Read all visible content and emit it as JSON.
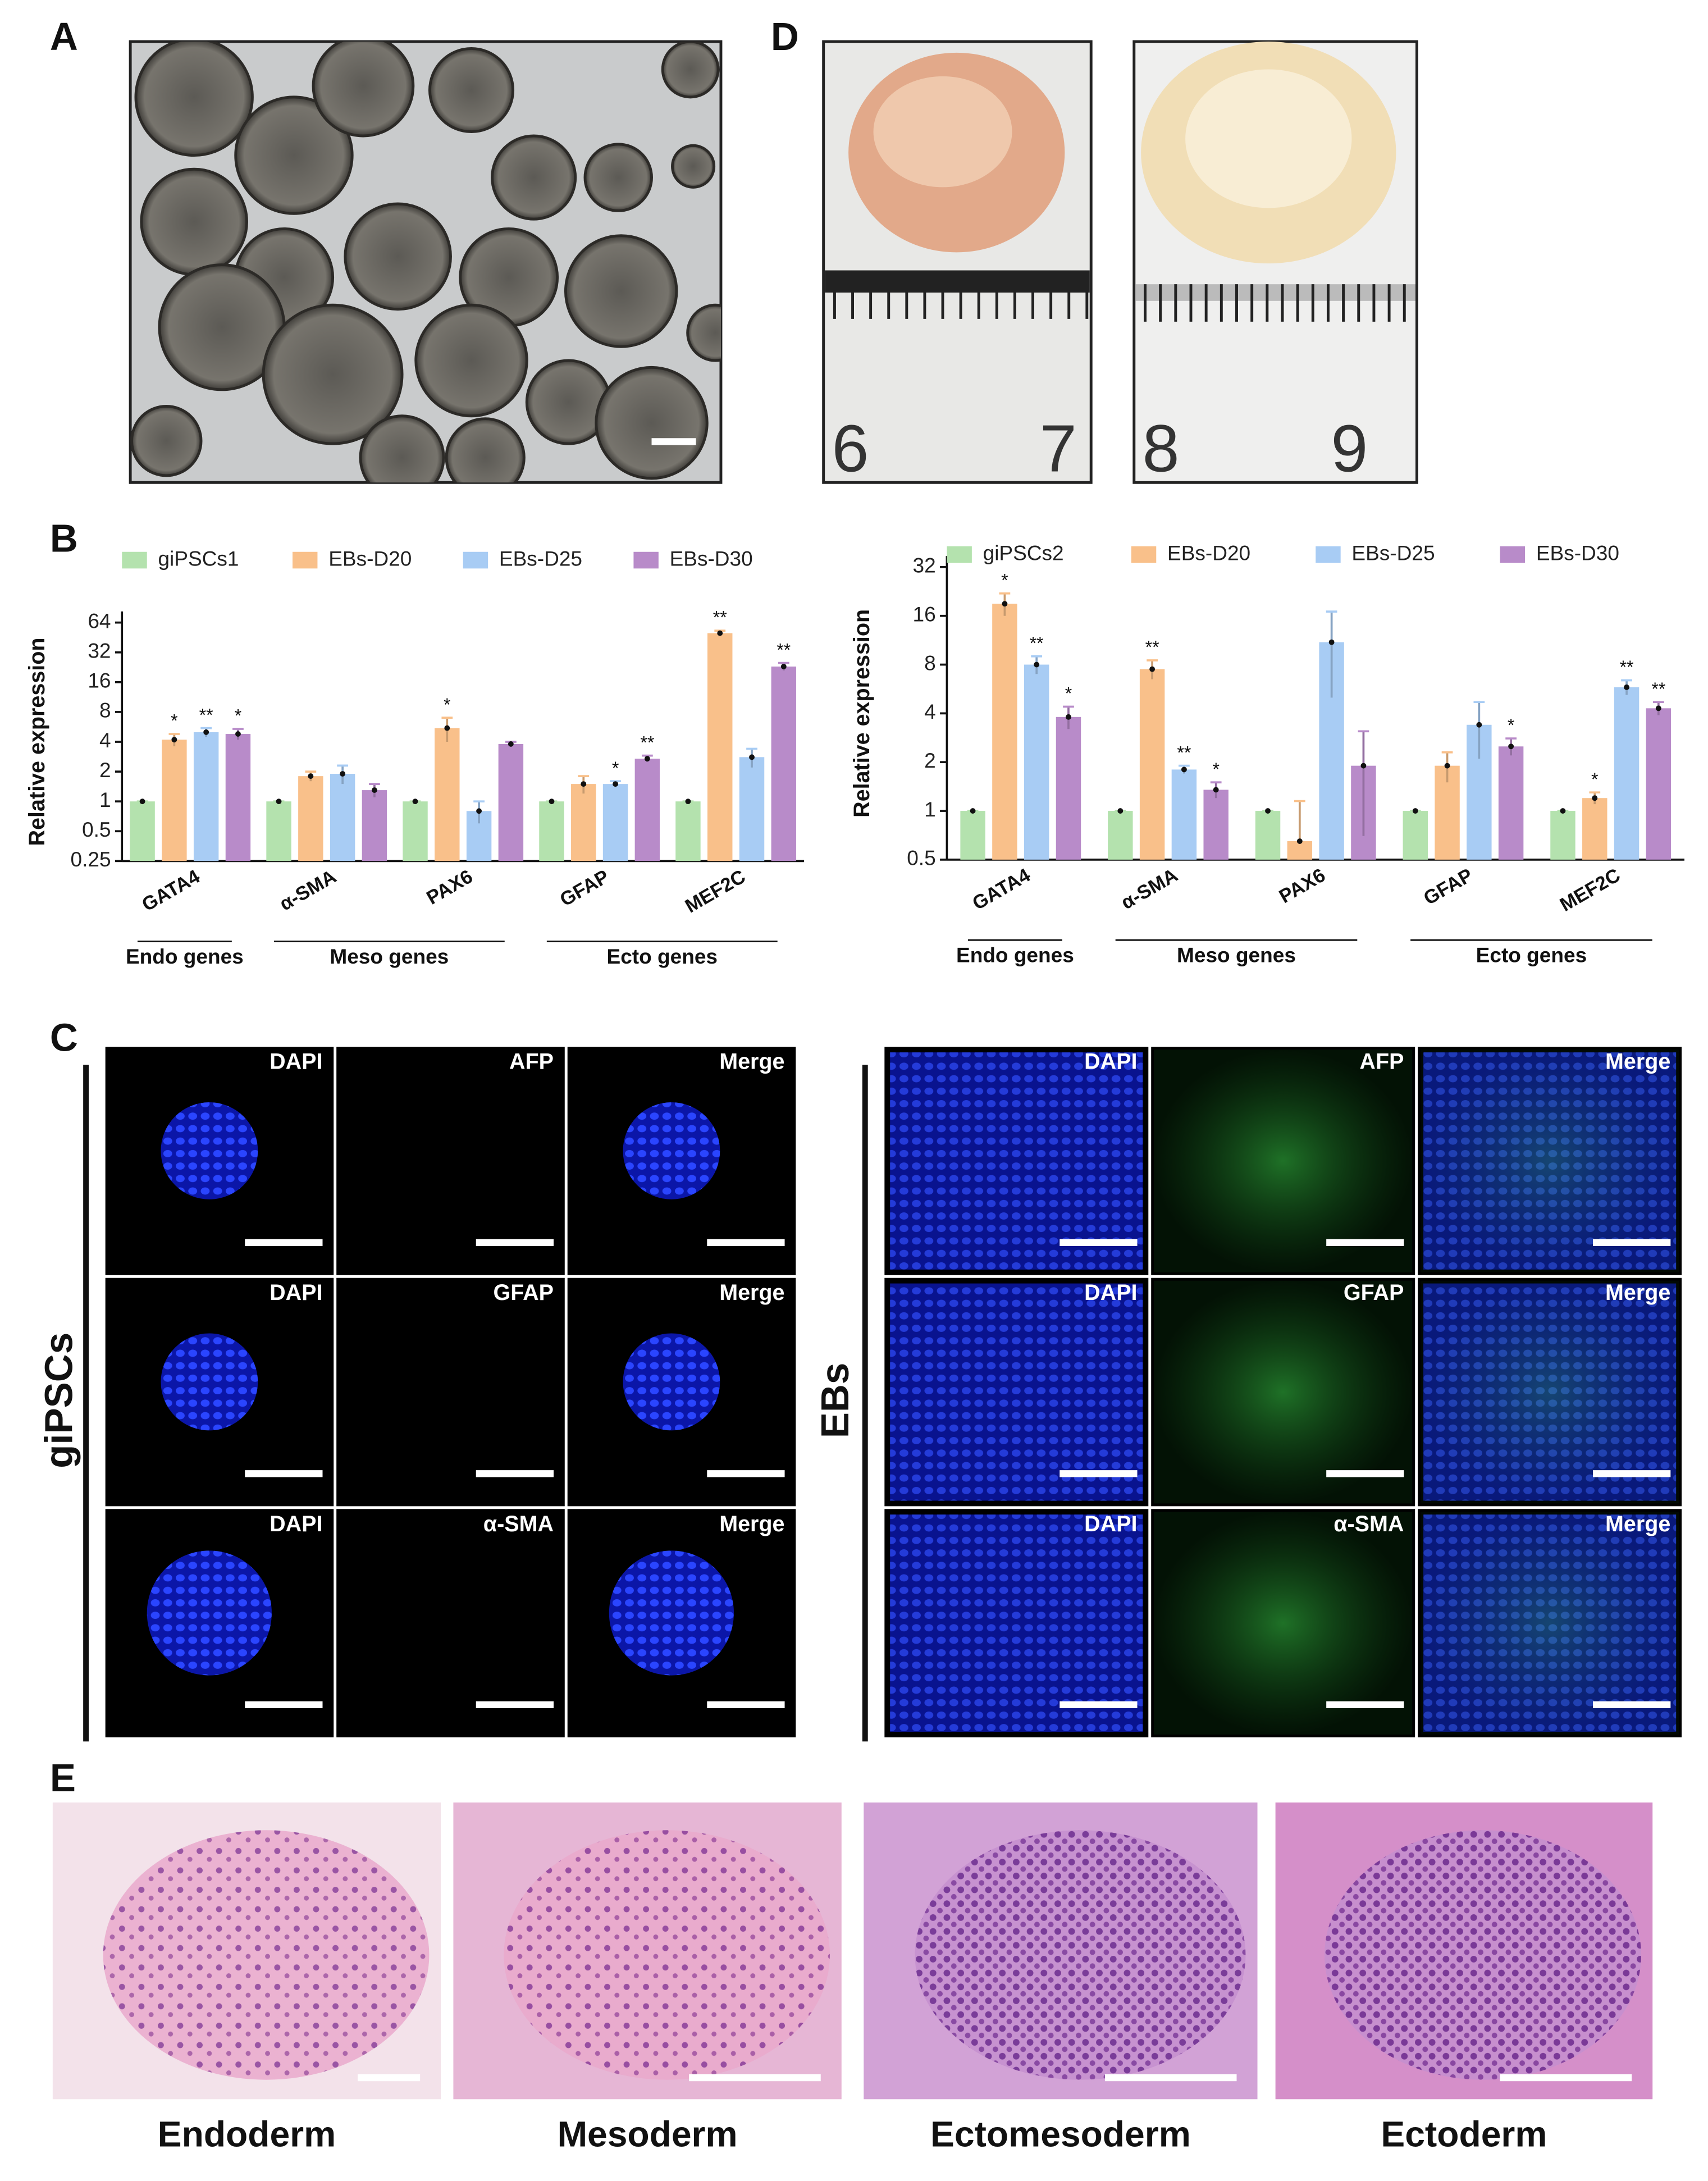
{
  "panel_labels": [
    "A",
    "B",
    "C",
    "D",
    "E"
  ],
  "panel_d": {
    "ruler_labels": [
      [
        "6",
        "7"
      ],
      [
        "8",
        "9"
      ]
    ]
  },
  "chart_data": [
    {
      "type": "bar",
      "y_label": "Relative expression",
      "yscale": "log2",
      "ylim": [
        0.25,
        64
      ],
      "yticks": [
        0.25,
        0.5,
        1,
        2,
        4,
        8,
        16,
        32,
        64
      ],
      "categories": [
        "GATA4",
        "α-SMA",
        "PAX6",
        "GFAP",
        "MEF2C"
      ],
      "category_groups": [
        {
          "name": "Endo genes",
          "size": 1
        },
        {
          "name": "Meso genes",
          "size": 2
        },
        {
          "name": "Ecto genes",
          "size": 2
        }
      ],
      "series": [
        {
          "name": "giPSCs1",
          "color": "#b4e2ae",
          "values": [
            1,
            1,
            1,
            1,
            1
          ],
          "errors": [
            0,
            0,
            0,
            0,
            0
          ],
          "significance": [
            null,
            null,
            null,
            null,
            null
          ]
        },
        {
          "name": "EBs-D20",
          "color": "#f9c08a",
          "values": [
            4.2,
            1.8,
            5.5,
            1.5,
            50
          ],
          "errors": [
            0.6,
            0.2,
            1.5,
            0.3,
            3
          ],
          "significance": [
            "*",
            null,
            "*",
            null,
            "**"
          ]
        },
        {
          "name": "EBs-D25",
          "color": "#a8ccf4",
          "values": [
            5,
            1.9,
            0.8,
            1.5,
            2.8
          ],
          "errors": [
            0.5,
            0.4,
            0.2,
            0.1,
            0.6
          ],
          "significance": [
            "**",
            null,
            null,
            "*",
            null
          ]
        },
        {
          "name": "EBs-D30",
          "color": "#b88bc9",
          "values": [
            4.8,
            1.3,
            3.8,
            2.7,
            23
          ],
          "errors": [
            0.6,
            0.2,
            0.2,
            0.2,
            2
          ],
          "significance": [
            "*",
            null,
            null,
            "**",
            "**"
          ]
        }
      ]
    },
    {
      "type": "bar",
      "y_label": "Relative expression",
      "yscale": "log2",
      "ylim": [
        0.5,
        32
      ],
      "yticks": [
        0.5,
        1,
        2,
        4,
        8,
        16,
        32
      ],
      "categories": [
        "GATA4",
        "α-SMA",
        "PAX6",
        "GFAP",
        "MEF2C"
      ],
      "category_groups": [
        {
          "name": "Endo genes",
          "size": 1
        },
        {
          "name": "Meso genes",
          "size": 2
        },
        {
          "name": "Ecto genes",
          "size": 2
        }
      ],
      "series": [
        {
          "name": "giPSCs2",
          "color": "#b4e2ae",
          "values": [
            1,
            1,
            1,
            1,
            1
          ],
          "errors": [
            0,
            0,
            0,
            0,
            0
          ],
          "significance": [
            null,
            null,
            null,
            null,
            null
          ]
        },
        {
          "name": "EBs-D20",
          "color": "#f9c08a",
          "values": [
            19,
            7.5,
            0.65,
            1.9,
            1.2
          ],
          "errors": [
            3,
            1,
            0.5,
            0.4,
            0.1
          ],
          "significance": [
            "*",
            "**",
            null,
            null,
            "*"
          ]
        },
        {
          "name": "EBs-D25",
          "color": "#a8ccf4",
          "values": [
            8,
            1.8,
            11,
            3.4,
            5.8
          ],
          "errors": [
            1,
            0.1,
            6,
            1.3,
            0.6
          ],
          "significance": [
            "**",
            "**",
            null,
            null,
            "**"
          ]
        },
        {
          "name": "EBs-D30",
          "color": "#b88bc9",
          "values": [
            3.8,
            1.35,
            1.9,
            2.5,
            4.3
          ],
          "errors": [
            0.6,
            0.15,
            1.2,
            0.3,
            0.4
          ],
          "significance": [
            "*",
            "*",
            null,
            "*",
            "**"
          ]
        }
      ]
    }
  ],
  "panel_c": {
    "groups": [
      {
        "label": "giPSCs",
        "rows": [
          [
            "DAPI",
            "AFP",
            "Merge"
          ],
          [
            "DAPI",
            "GFAP",
            "Merge"
          ],
          [
            "DAPI",
            "α-SMA",
            "Merge"
          ]
        ]
      },
      {
        "label": "EBs",
        "rows": [
          [
            "DAPI",
            "AFP",
            "Merge"
          ],
          [
            "DAPI",
            "GFAP",
            "Merge"
          ],
          [
            "DAPI",
            "α-SMA",
            "Merge"
          ]
        ]
      }
    ]
  },
  "panel_e": {
    "labels": [
      "Endoderm",
      "Mesoderm",
      "Ectomesoderm",
      "Ectoderm"
    ]
  }
}
